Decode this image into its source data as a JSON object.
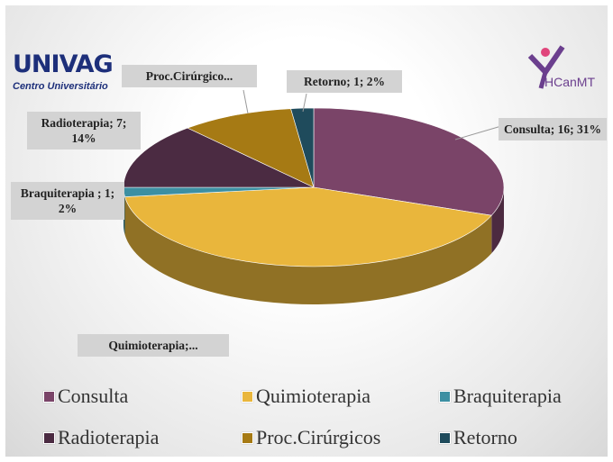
{
  "logos": {
    "left": "UNIVAG",
    "left_caption": "Centro Universitário",
    "right": "HCanMT"
  },
  "chart_data": {
    "type": "pie",
    "categories": [
      "Consulta",
      "Quimioterapia",
      "Braquiterapia",
      "Radioterapia",
      "Proc.Cirúrgicos",
      "Retorno"
    ],
    "values": [
      16,
      22,
      1,
      7,
      5,
      1
    ],
    "value_labels": [
      "Consulta; 16; 31%",
      "Quimioterapia;...",
      "Braquiterapia ; 1; 2%",
      "Radioterapia; 7; 14%",
      "Proc.Cirúrgico...",
      "Retorno; 1; 2%"
    ],
    "colors": [
      "#7a4468",
      "#e9b63c",
      "#3c8fa2",
      "#4b2b42",
      "#a67a14",
      "#1f4b5c"
    ],
    "legend": "bottom"
  }
}
